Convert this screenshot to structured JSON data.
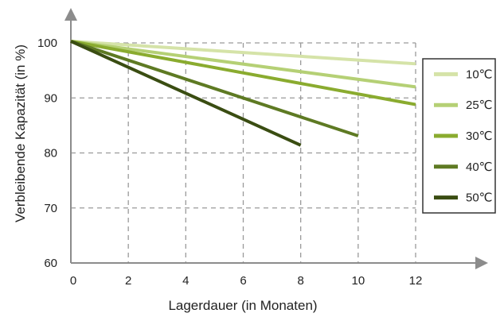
{
  "chart_data": {
    "type": "line",
    "title": "",
    "xlabel": "Lagerdauer (in Monaten)",
    "ylabel": "Verbleibende Kapazität (in %)",
    "xlim": [
      0,
      12
    ],
    "ylim": [
      60,
      100
    ],
    "xticks": [
      0,
      2,
      4,
      6,
      8,
      10,
      12
    ],
    "yticks": [
      60,
      70,
      80,
      90,
      100
    ],
    "grid": true,
    "legend_position": "right",
    "series": [
      {
        "name": "10℃",
        "color": "#d5e3a8",
        "x": [
          0,
          12
        ],
        "y": [
          100.3,
          96.2
        ]
      },
      {
        "name": "25℃",
        "color": "#b5d075",
        "x": [
          0,
          12
        ],
        "y": [
          100.3,
          92.0
        ]
      },
      {
        "name": "30℃",
        "color": "#8aab2f",
        "x": [
          0,
          12
        ],
        "y": [
          100.3,
          88.8
        ]
      },
      {
        "name": "40℃",
        "color": "#5e7a23",
        "x": [
          0,
          10
        ],
        "y": [
          100.3,
          83.1
        ]
      },
      {
        "name": "50℃",
        "color": "#3a4d12",
        "x": [
          0,
          8
        ],
        "y": [
          100.3,
          81.4
        ]
      }
    ]
  }
}
